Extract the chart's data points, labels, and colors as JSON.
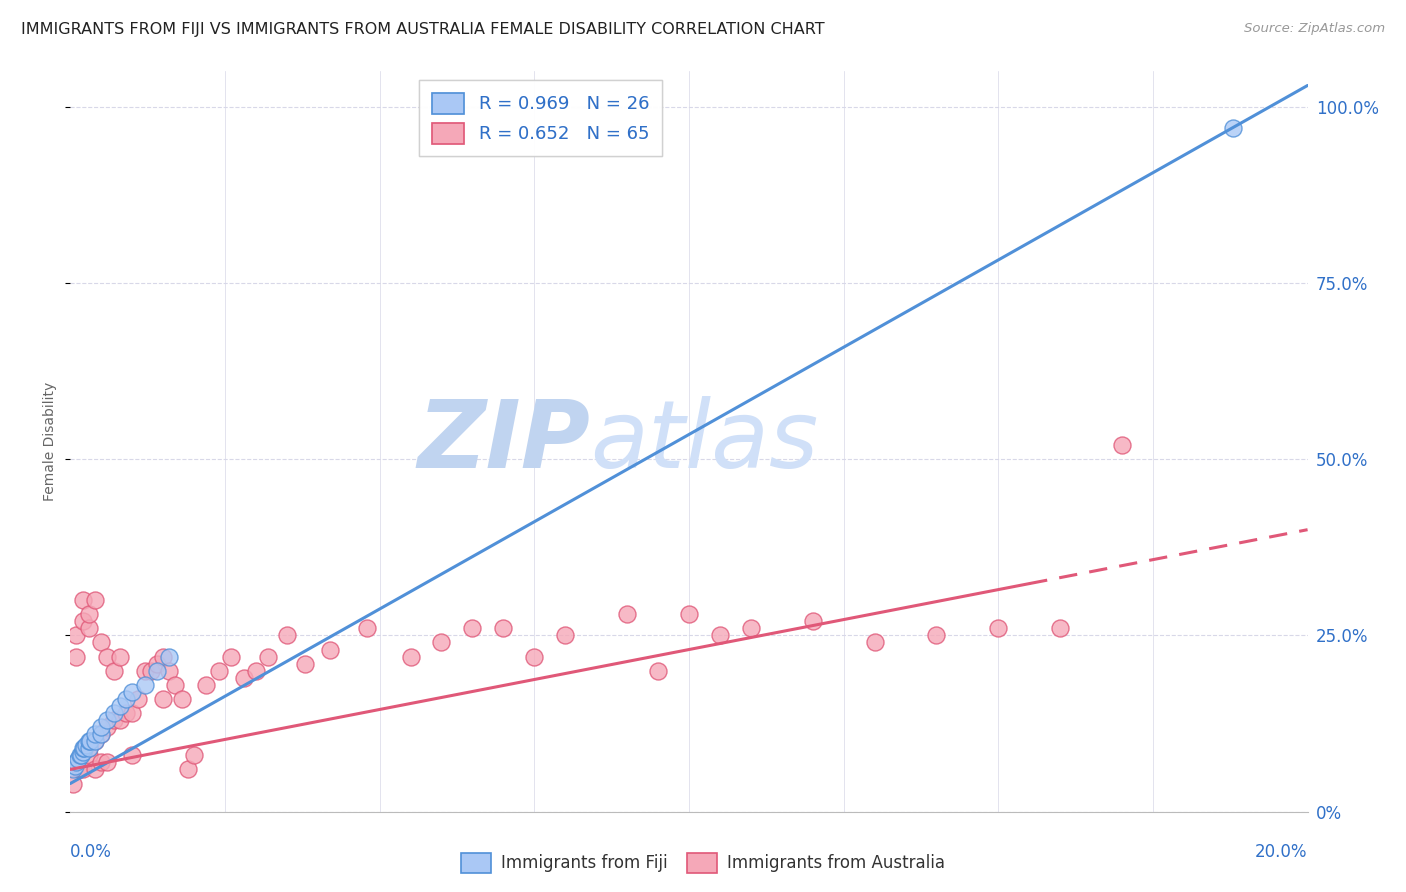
{
  "title": "IMMIGRANTS FROM FIJI VS IMMIGRANTS FROM AUSTRALIA FEMALE DISABILITY CORRELATION CHART",
  "source": "Source: ZipAtlas.com",
  "ylabel": "Female Disability",
  "y_tick_labels": [
    "0%",
    "25.0%",
    "50.0%",
    "75.0%",
    "100.0%"
  ],
  "y_tick_values": [
    0,
    0.25,
    0.5,
    0.75,
    1.0
  ],
  "x_range": [
    0,
    0.2
  ],
  "y_range": [
    0,
    1.05
  ],
  "fiji_color": "#aac8f5",
  "fiji_line_color": "#5090d8",
  "australia_color": "#f5a8b8",
  "australia_line_color": "#e05878",
  "fiji_scatter_x": [
    0.0005,
    0.0008,
    0.001,
    0.0012,
    0.0015,
    0.0018,
    0.002,
    0.002,
    0.0022,
    0.0025,
    0.003,
    0.003,
    0.0032,
    0.004,
    0.004,
    0.005,
    0.005,
    0.006,
    0.007,
    0.008,
    0.009,
    0.01,
    0.012,
    0.014,
    0.016,
    0.188
  ],
  "fiji_scatter_y": [
    0.06,
    0.065,
    0.07,
    0.075,
    0.08,
    0.08,
    0.085,
    0.09,
    0.09,
    0.095,
    0.09,
    0.1,
    0.1,
    0.1,
    0.11,
    0.11,
    0.12,
    0.13,
    0.14,
    0.15,
    0.16,
    0.17,
    0.18,
    0.2,
    0.22,
    0.97
  ],
  "australia_scatter_x": [
    0.0005,
    0.001,
    0.001,
    0.0015,
    0.002,
    0.002,
    0.002,
    0.003,
    0.003,
    0.003,
    0.003,
    0.004,
    0.004,
    0.004,
    0.005,
    0.005,
    0.005,
    0.006,
    0.006,
    0.006,
    0.007,
    0.007,
    0.008,
    0.008,
    0.009,
    0.01,
    0.01,
    0.011,
    0.012,
    0.013,
    0.014,
    0.015,
    0.015,
    0.016,
    0.017,
    0.018,
    0.019,
    0.02,
    0.022,
    0.024,
    0.026,
    0.028,
    0.03,
    0.032,
    0.035,
    0.038,
    0.042,
    0.048,
    0.055,
    0.06,
    0.065,
    0.07,
    0.075,
    0.08,
    0.09,
    0.095,
    0.1,
    0.105,
    0.11,
    0.12,
    0.13,
    0.14,
    0.15,
    0.16,
    0.17
  ],
  "australia_scatter_y": [
    0.04,
    0.22,
    0.25,
    0.06,
    0.06,
    0.27,
    0.3,
    0.08,
    0.09,
    0.26,
    0.28,
    0.06,
    0.1,
    0.3,
    0.07,
    0.11,
    0.24,
    0.07,
    0.12,
    0.22,
    0.13,
    0.2,
    0.13,
    0.22,
    0.14,
    0.08,
    0.14,
    0.16,
    0.2,
    0.2,
    0.21,
    0.16,
    0.22,
    0.2,
    0.18,
    0.16,
    0.06,
    0.08,
    0.18,
    0.2,
    0.22,
    0.19,
    0.2,
    0.22,
    0.25,
    0.21,
    0.23,
    0.26,
    0.22,
    0.24,
    0.26,
    0.26,
    0.22,
    0.25,
    0.28,
    0.2,
    0.28,
    0.25,
    0.26,
    0.27,
    0.24,
    0.25,
    0.26,
    0.26,
    0.52
  ],
  "fiji_line_x0": 0.0,
  "fiji_line_y0": 0.04,
  "fiji_line_x1": 0.2,
  "fiji_line_y1": 1.03,
  "aus_line_x0": 0.0,
  "aus_line_y0": 0.06,
  "aus_line_x1_solid": 0.155,
  "aus_line_x1": 0.2,
  "aus_line_y1": 0.4,
  "background_color": "#ffffff",
  "grid_color": "#d8d8e8",
  "watermark_zip": "ZIP",
  "watermark_atlas": "atlas",
  "watermark_color": "#c8d8f0",
  "stat_color": "#3070c8",
  "title_fontsize": 11.5,
  "tick_label_color": "#3070c8",
  "x_minor_ticks": [
    0.025,
    0.05,
    0.075,
    0.1,
    0.125,
    0.15,
    0.175
  ]
}
